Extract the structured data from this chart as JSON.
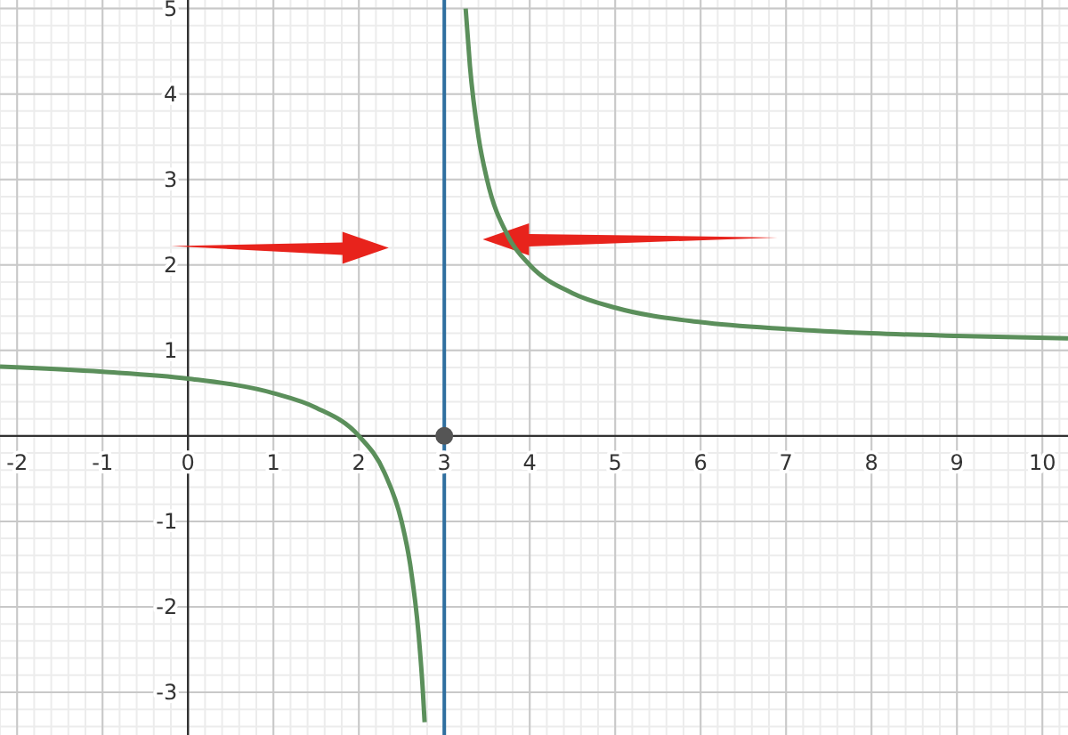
{
  "chart_data": {
    "type": "line",
    "xlim": [
      -2.2,
      10.3
    ],
    "ylim": [
      -3.5,
      5.1
    ],
    "xticks": [
      -2,
      -1,
      0,
      1,
      2,
      3,
      4,
      5,
      6,
      7,
      8,
      9,
      10
    ],
    "yticks": [
      -3,
      -2,
      -1,
      1,
      2,
      3,
      4,
      5
    ],
    "grid": true,
    "line_style": "solid",
    "ref_lines": [
      {
        "axis": "x",
        "value": 3,
        "color": "#2f6f9f",
        "line_style": "solid"
      }
    ],
    "series": [
      {
        "color": "#5b8f5b",
        "x": [
          -2.2,
          -1,
          0,
          1,
          1.5,
          2,
          2.3,
          2.5,
          2.6,
          2.7,
          2.75,
          2.77
        ],
        "values": [
          0.81,
          0.75,
          0.67,
          0.5,
          0.33,
          0,
          -0.43,
          -1,
          -1.5,
          -2.33,
          -3,
          -3.35
        ]
      },
      {
        "color": "#5b8f5b",
        "x": [
          3.25,
          3.3,
          3.4,
          3.5,
          3.75,
          4,
          4.5,
          5,
          6,
          7,
          8,
          9,
          10.3
        ],
        "values": [
          5,
          4.33,
          3.5,
          3,
          2.33,
          2,
          1.67,
          1.5,
          1.33,
          1.25,
          1.2,
          1.17,
          1.14
        ]
      },
      {
        "type": "scatter",
        "color": "#555555",
        "marker": "circle",
        "x": [
          3
        ],
        "values": [
          0
        ]
      }
    ]
  }
}
